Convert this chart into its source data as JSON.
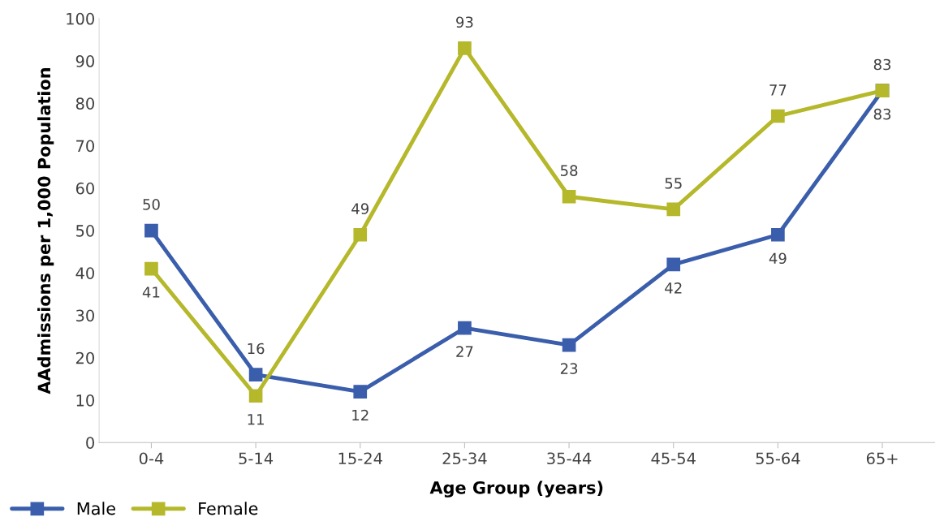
{
  "chart_data": {
    "type": "line",
    "xlabel": "Age Group (years)",
    "ylabel": "AAdmissions per 1,000 Population",
    "categories": [
      "0-4",
      "5-14",
      "15-24",
      "25-34",
      "35-44",
      "45-54",
      "55-64",
      "65+"
    ],
    "series": [
      {
        "name": "Male",
        "color": "#3a5eab",
        "values": [
          50,
          16,
          12,
          27,
          23,
          42,
          49,
          83
        ]
      },
      {
        "name": "Female",
        "color": "#b5b82a",
        "values": [
          41,
          11,
          49,
          93,
          58,
          55,
          77,
          83
        ]
      }
    ],
    "ylim": [
      0,
      100
    ],
    "yticks": [
      0,
      10,
      20,
      30,
      40,
      50,
      60,
      70,
      80,
      90,
      100
    ],
    "grid": false,
    "legend": "bottom left",
    "marker": "square",
    "line_style": "solid",
    "data_labels": true
  }
}
